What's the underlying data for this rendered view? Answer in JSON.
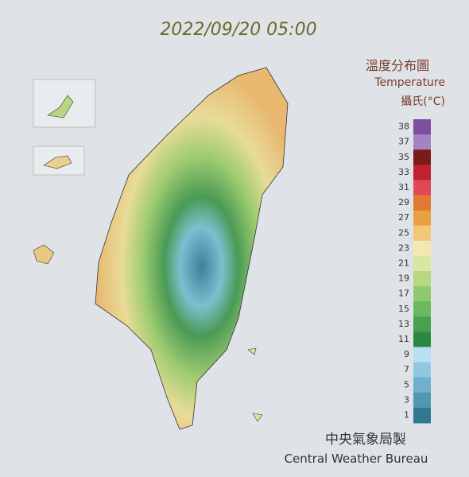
{
  "header": {
    "timestamp": "2022/09/20 05:00"
  },
  "legend": {
    "title": "溫度分布圖",
    "subtitle": "Temperature",
    "unit": "攝氏(°C)",
    "ticks": [
      38,
      37,
      35,
      33,
      31,
      29,
      27,
      25,
      23,
      21,
      19,
      17,
      15,
      13,
      11,
      9,
      7,
      5,
      3,
      1
    ],
    "colors": [
      "#7b4fa0",
      "#a484c0",
      "#7a1a1a",
      "#c02030",
      "#e04858",
      "#e07a30",
      "#e8a040",
      "#f0c878",
      "#f2e8b0",
      "#d8e8a0",
      "#b8d880",
      "#90c870",
      "#6ab860",
      "#48a050",
      "#2a8840",
      "#b8e0f0",
      "#90c8e0",
      "#70b0cc",
      "#5098b0",
      "#307890"
    ]
  },
  "footer": {
    "agency_zh": "中央氣象局製",
    "agency_en": "Central Weather Bureau"
  }
}
